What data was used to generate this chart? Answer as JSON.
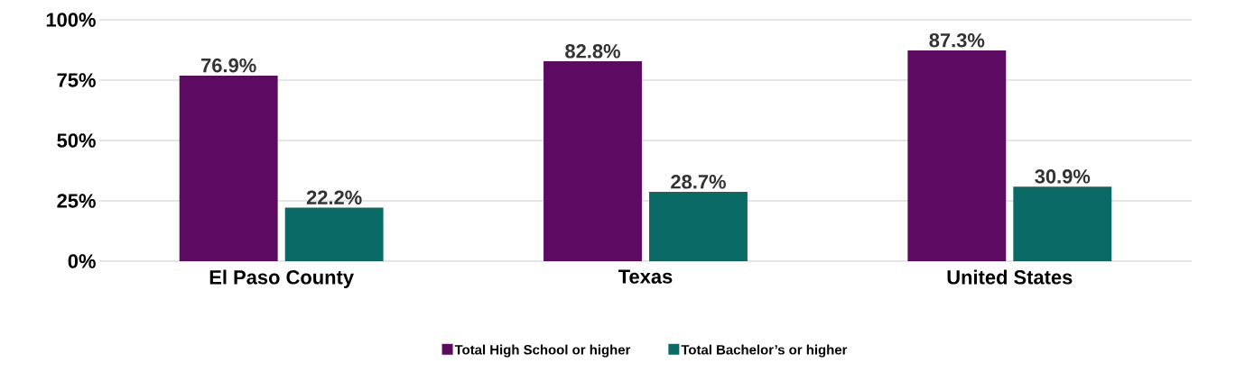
{
  "chart_data": {
    "type": "bar",
    "categories": [
      "El Paso County",
      "Texas",
      "United States"
    ],
    "series": [
      {
        "name": "Total High School or higher",
        "color": "#5c0a62",
        "values": [
          76.9,
          82.8,
          87.3
        ],
        "value_labels": [
          "76.9%",
          "82.8%",
          "87.3%"
        ]
      },
      {
        "name": "Total Bachelor’s or higher",
        "color": "#0a6b66",
        "values": [
          22.2,
          28.7,
          30.9
        ],
        "value_labels": [
          "22.2%",
          "28.7%",
          "30.9%"
        ]
      }
    ],
    "ylim": [
      0,
      100
    ],
    "yticks": [
      {
        "value": 0,
        "label": "0%"
      },
      {
        "value": 25,
        "label": "25%"
      },
      {
        "value": 50,
        "label": "50%"
      },
      {
        "value": 75,
        "label": "75%"
      },
      {
        "value": 100,
        "label": "100%"
      }
    ],
    "grid": "y",
    "legend": "bottom"
  }
}
